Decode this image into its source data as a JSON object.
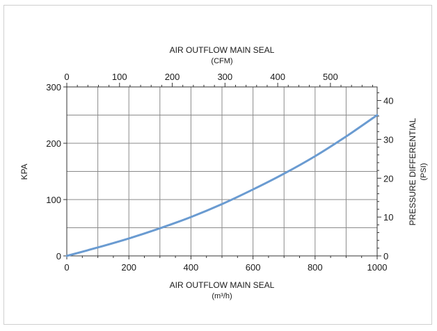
{
  "chart_data": {
    "type": "line",
    "top_axis": {
      "title": "AIR OUTFLOW MAIN SEAL",
      "unit": "(CFM)",
      "ticks": [
        0,
        100,
        200,
        300,
        400,
        500
      ],
      "range": [
        0,
        588.6
      ]
    },
    "bottom_axis": {
      "title": "AIR OUTFLOW MAIN SEAL",
      "unit": "(m³/h)",
      "ticks": [
        0,
        200,
        400,
        600,
        800,
        1000
      ],
      "range": [
        0,
        1000
      ]
    },
    "left_axis": {
      "title": "KPA",
      "ticks": [
        0,
        100,
        200,
        300
      ],
      "range": [
        0,
        300
      ]
    },
    "right_axis": {
      "title": "PRESSURE DIFFERENTIAL",
      "unit": "(PSI)",
      "ticks": [
        0,
        10,
        20,
        30,
        40
      ],
      "range": [
        0,
        43.5
      ]
    },
    "grid": true,
    "line_color": "#6a9bd1",
    "series": [
      {
        "x": [
          0,
          100,
          200,
          300,
          400,
          500,
          600,
          700,
          800,
          900,
          1000
        ],
        "y": [
          0,
          15,
          31,
          49,
          69,
          92,
          118,
          146,
          177,
          212,
          250
        ]
      }
    ]
  }
}
